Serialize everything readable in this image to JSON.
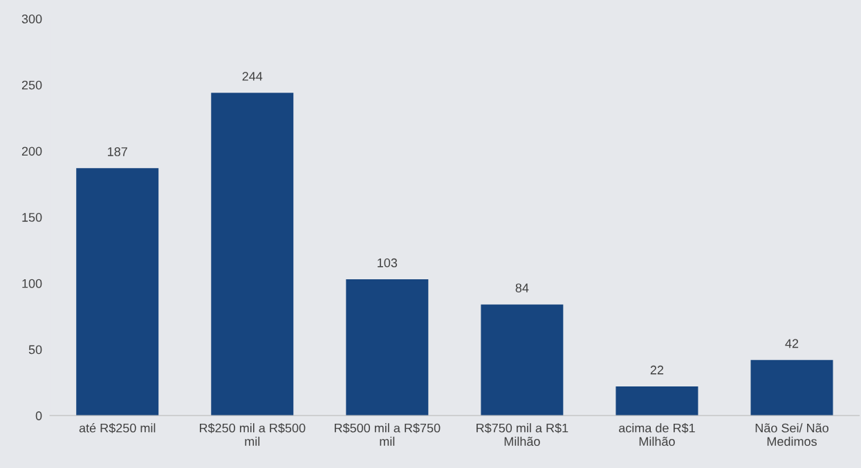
{
  "chart_data": {
    "type": "bar",
    "categories": [
      "até R$250 mil",
      "R$250 mil a R$500\nmil",
      "R$500 mil a R$750\nmil",
      "R$750 mil a R$1\nMilhão",
      "acima de R$1\nMilhão",
      "Não Sei/ Não\nMedimos"
    ],
    "values": [
      187,
      244,
      103,
      84,
      22,
      42
    ],
    "color": "#17457f",
    "ylim": [
      0,
      300
    ],
    "yticks": [
      0,
      50,
      100,
      150,
      200,
      250,
      300
    ],
    "data_labels": true,
    "grid": false
  }
}
